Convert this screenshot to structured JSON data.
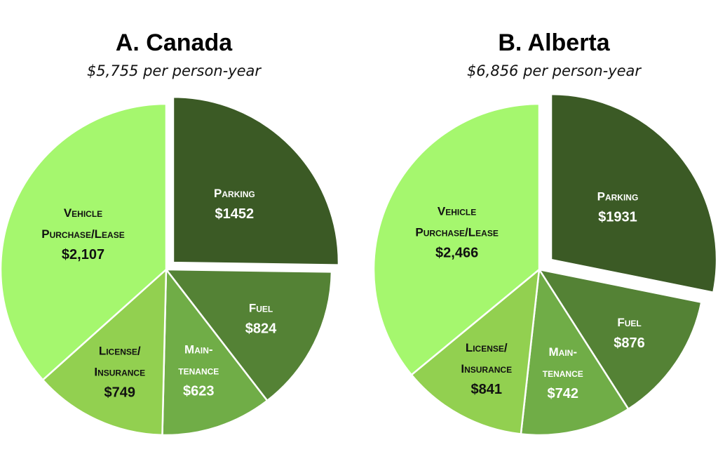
{
  "chart_data": [
    {
      "type": "pie",
      "title": "A.  Canada",
      "subtitle": "$5,755 per person-year",
      "slices": [
        {
          "label": [
            "Parking",
            "$1452"
          ],
          "value": 1452,
          "color": "#3b5a25",
          "text_color": "light",
          "exploded": true
        },
        {
          "label": [
            "Fuel",
            "$824"
          ],
          "value": 824,
          "color": "#548235",
          "text_color": "light",
          "exploded": false
        },
        {
          "label": [
            "Main-",
            "tenance",
            "$623"
          ],
          "value": 623,
          "color": "#70ad47",
          "text_color": "light",
          "exploded": false
        },
        {
          "label": [
            "License/",
            "Insurance",
            "$749"
          ],
          "value": 749,
          "color": "#92d050",
          "text_color": "dark",
          "exploded": false
        },
        {
          "label": [
            "Vehicle",
            "Purchase/Lease",
            "$2,107"
          ],
          "value": 2107,
          "color": "#a5f76e",
          "text_color": "dark",
          "exploded": false
        }
      ]
    },
    {
      "type": "pie",
      "title": "B.  Alberta",
      "subtitle": "$6,856 per person-year",
      "slices": [
        {
          "label": [
            "Parking",
            "$1931"
          ],
          "value": 1931,
          "color": "#3b5a25",
          "text_color": "light",
          "exploded": true
        },
        {
          "label": [
            "Fuel",
            "$876"
          ],
          "value": 876,
          "color": "#548235",
          "text_color": "light",
          "exploded": false
        },
        {
          "label": [
            "Main-",
            "tenance",
            "$742"
          ],
          "value": 742,
          "color": "#70ad47",
          "text_color": "light",
          "exploded": false
        },
        {
          "label": [
            "License/",
            "Insurance",
            "$841"
          ],
          "value": 841,
          "color": "#92d050",
          "text_color": "dark",
          "exploded": false
        },
        {
          "label": [
            "Vehicle",
            "Purchase/Lease",
            "$2,466"
          ],
          "value": 2466,
          "color": "#a5f76e",
          "text_color": "dark",
          "exploded": false
        }
      ]
    }
  ]
}
